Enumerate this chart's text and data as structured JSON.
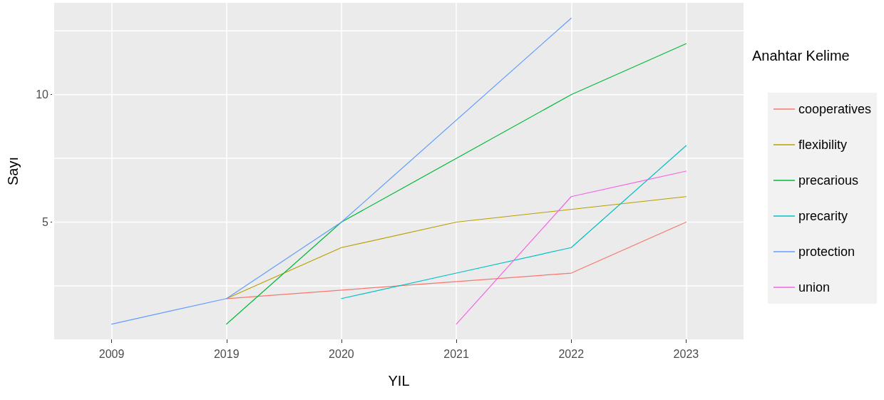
{
  "chart_data": {
    "type": "line",
    "xlabel": "YIL",
    "ylabel": "Sayı",
    "legend_title": "Anahtar Kelime",
    "categories": [
      "2009",
      "2019",
      "2020",
      "2021",
      "2022",
      "2023"
    ],
    "series": [
      {
        "name": "cooperatives",
        "color": "#f8766d",
        "values": [
          null,
          2,
          null,
          null,
          3,
          5
        ]
      },
      {
        "name": "flexibility",
        "color": "#b79f00",
        "values": [
          null,
          2,
          4,
          5,
          null,
          6
        ]
      },
      {
        "name": "precarious",
        "color": "#00ba38",
        "values": [
          null,
          1,
          5,
          null,
          10,
          12
        ]
      },
      {
        "name": "precarity",
        "color": "#00bfc4",
        "values": [
          null,
          null,
          2,
          3,
          4,
          8
        ]
      },
      {
        "name": "protection",
        "color": "#619cff",
        "values": [
          1,
          2,
          5,
          null,
          13,
          null
        ]
      },
      {
        "name": "union",
        "color": "#f564e3",
        "values": [
          null,
          null,
          null,
          1,
          6,
          7
        ]
      }
    ],
    "ylim": [
      0.4,
      13.6
    ],
    "yticks": [
      {
        "value": 2.5,
        "label": null
      },
      5,
      {
        "value": 7.5,
        "label": null
      },
      10,
      {
        "value": 12.5,
        "label": null
      }
    ],
    "grid": true,
    "legend": "right",
    "marker": "none",
    "line_style": "solid"
  }
}
